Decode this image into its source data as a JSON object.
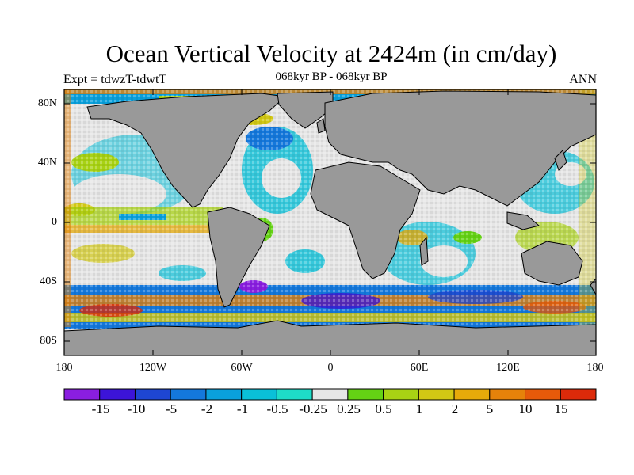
{
  "map": {
    "title": "Ocean Vertical Velocity at 2424m (in cm/day)",
    "experiment": "Expt = tdwzT-tdwtT",
    "subtitle": "068kyr BP - 068kyr BP",
    "season": "ANN",
    "lat_labels": [
      "80N",
      "40N",
      "0",
      "40S",
      "80S"
    ],
    "lon_labels": [
      "180",
      "120W",
      "60W",
      "0",
      "60E",
      "120E",
      "180"
    ],
    "land_color": "#999999",
    "coast_color": "#000000"
  },
  "colorbar": {
    "colors": [
      "#8a1ee0",
      "#3c14d8",
      "#1e46d2",
      "#1478dc",
      "#0aa0dc",
      "#0ac0d8",
      "#1edcc8",
      "#e6e6e6",
      "#64d214",
      "#a8d214",
      "#d2c814",
      "#e6aa0a",
      "#e6820a",
      "#e65a0a",
      "#dc2a0a"
    ],
    "labels": [
      "-15",
      "-10",
      "-5",
      "-2",
      "-1",
      "-0.5",
      "-0.25",
      "0.25",
      "0.5",
      "1",
      "2",
      "5",
      "10",
      "15"
    ]
  }
}
